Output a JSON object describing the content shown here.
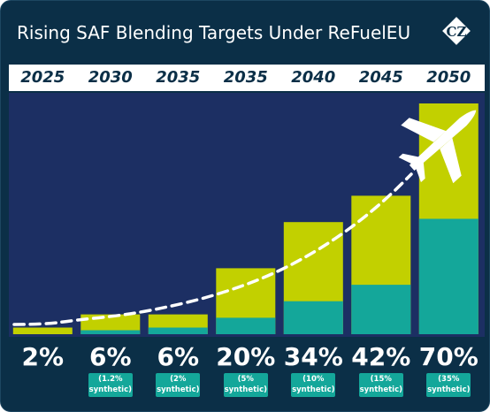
{
  "header": {
    "title": "Rising SAF Blending Targets Under ReFuelEU",
    "logo_text": "CZ"
  },
  "colors": {
    "background": "#0b2f47",
    "plot_background": "#1c2f63",
    "saf_total": "#c2d000",
    "synthetic": "#14a79a",
    "text": "#ffffff"
  },
  "icons": [
    "airplane-icon",
    "cz-logo-icon"
  ],
  "chart_data": {
    "type": "bar",
    "categories": [
      "2025",
      "2030",
      "2035",
      "2035",
      "2040",
      "2045",
      "2050"
    ],
    "series": [
      {
        "values": [
          2,
          6,
          6,
          20,
          34,
          42,
          70
        ]
      },
      {
        "values": [
          0,
          1.2,
          2,
          5,
          10,
          15,
          35
        ]
      }
    ],
    "value_labels": [
      "2%",
      "6%",
      "6%",
      "20%",
      "34%",
      "42%",
      "70%"
    ],
    "synthetic_labels": [
      [
        "",
        ""
      ],
      [
        "(1.2%",
        "synthetic)"
      ],
      [
        "(2%",
        "synthetic)"
      ],
      [
        "(5%",
        "synthetic)"
      ],
      [
        "(10%",
        "synthetic)"
      ],
      [
        "(15%",
        "synthetic)"
      ],
      [
        "(35%",
        "synthetic)"
      ]
    ],
    "trend": "dashed curve rising through bar tops",
    "ylim": [
      0,
      70
    ]
  }
}
